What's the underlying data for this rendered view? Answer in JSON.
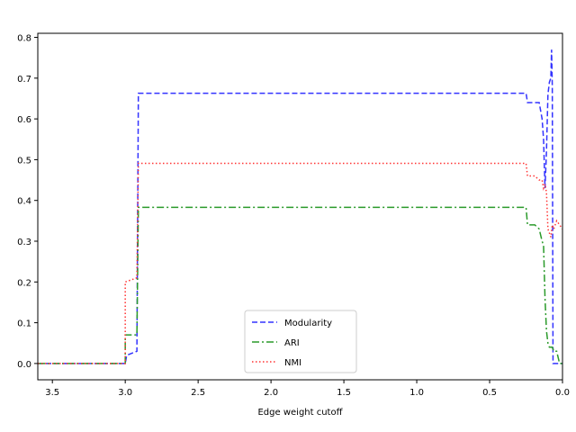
{
  "chart_data": {
    "type": "line",
    "title": "",
    "xlabel": "Edge weight cutoff",
    "ylabel": "",
    "xlim": [
      3.6,
      0.0
    ],
    "ylim": [
      -0.04,
      0.81
    ],
    "x_inverted": true,
    "grid": false,
    "legend_position": "bottom-center",
    "xticks": [
      "3.5",
      "3.0",
      "2.5",
      "2.0",
      "1.5",
      "1.0",
      "0.5",
      "0.0"
    ],
    "yticks": [
      "0.0",
      "0.1",
      "0.2",
      "0.3",
      "0.4",
      "0.5",
      "0.6",
      "0.7",
      "0.8"
    ],
    "series": [
      {
        "name": "Modularity",
        "color": "#3333ff",
        "style": "dashed",
        "x": [
          3.6,
          3.0,
          2.99,
          2.92,
          2.91,
          2.91,
          0.25,
          0.24,
          0.19,
          0.16,
          0.14,
          0.13,
          0.12,
          0.11,
          0.1,
          0.09,
          0.08,
          0.075,
          0.07,
          0.065,
          0.06,
          0.02,
          0.0
        ],
        "y": [
          0.0,
          0.0,
          0.02,
          0.03,
          0.66,
          0.663,
          0.663,
          0.64,
          0.64,
          0.64,
          0.6,
          0.55,
          0.43,
          0.52,
          0.66,
          0.69,
          0.7,
          0.77,
          0.68,
          0.0,
          0.0,
          0.0,
          0.0
        ]
      },
      {
        "name": "ARI",
        "color": "#2a9a2a",
        "style": "dashdot",
        "x": [
          3.6,
          3.0,
          3.0,
          2.92,
          2.91,
          2.91,
          0.25,
          0.24,
          0.19,
          0.16,
          0.14,
          0.13,
          0.12,
          0.11,
          0.1,
          0.09,
          0.08,
          0.07,
          0.06,
          0.04,
          0.02,
          0.0
        ],
        "y": [
          0.0,
          0.0,
          0.07,
          0.07,
          0.38,
          0.383,
          0.383,
          0.34,
          0.34,
          0.33,
          0.3,
          0.29,
          0.16,
          0.08,
          0.05,
          0.04,
          0.04,
          0.04,
          0.03,
          0.03,
          0.0,
          0.0
        ]
      },
      {
        "name": "NMI",
        "color": "#ff3333",
        "style": "dotted",
        "x": [
          3.6,
          3.0,
          3.0,
          2.92,
          2.91,
          2.91,
          0.25,
          0.24,
          0.19,
          0.16,
          0.14,
          0.13,
          0.12,
          0.11,
          0.1,
          0.09,
          0.08,
          0.07,
          0.06,
          0.04,
          0.02,
          0.0
        ],
        "y": [
          0.0,
          0.0,
          0.2,
          0.21,
          0.49,
          0.491,
          0.491,
          0.46,
          0.46,
          0.45,
          0.45,
          0.43,
          0.44,
          0.42,
          0.33,
          0.32,
          0.31,
          0.34,
          0.33,
          0.35,
          0.34,
          0.33
        ]
      }
    ]
  }
}
